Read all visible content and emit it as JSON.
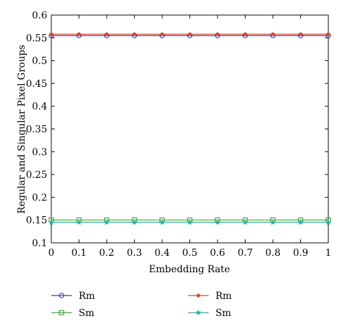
{
  "chart_data": {
    "type": "line",
    "title": "",
    "xlabel": "Embedding Rate",
    "ylabel": "Regular and Singular Pixel Groups",
    "xlim": [
      0,
      1
    ],
    "ylim": [
      0.1,
      0.6
    ],
    "x": [
      0,
      0.1,
      0.2,
      0.3,
      0.4,
      0.5,
      0.6,
      0.7,
      0.8,
      0.9,
      1
    ],
    "xticks": [
      "0",
      "0.1",
      "0.2",
      "0.3",
      "0.4",
      "0.5",
      "0.6",
      "0.7",
      "0.8",
      "0.9",
      "1"
    ],
    "yticks": [
      0.1,
      0.15,
      0.2,
      0.25,
      0.3,
      0.35,
      0.4,
      0.45,
      0.5,
      0.55,
      0.6
    ],
    "ytick_labels": [
      "0.1",
      "0.15",
      "0.2",
      "0.25",
      "0.3",
      "0.35",
      "0.4",
      "0.45",
      "0.5",
      "0.55",
      "0.6"
    ],
    "grid": false,
    "legend_placement": "below",
    "series": [
      {
        "name": "Rm",
        "color": "#3b3ba8",
        "marker": "circle",
        "values": [
          0.555,
          0.555,
          0.555,
          0.555,
          0.555,
          0.555,
          0.555,
          0.555,
          0.555,
          0.555,
          0.555
        ]
      },
      {
        "name": "Rm",
        "color": "#d9482b",
        "marker": "dot",
        "values": [
          0.558,
          0.558,
          0.558,
          0.558,
          0.558,
          0.558,
          0.558,
          0.558,
          0.558,
          0.558,
          0.558
        ]
      },
      {
        "name": "Sm",
        "color": "#3aa63a",
        "marker": "square",
        "values": [
          0.15,
          0.15,
          0.15,
          0.15,
          0.15,
          0.15,
          0.15,
          0.15,
          0.15,
          0.15,
          0.15
        ]
      },
      {
        "name": "Sm",
        "color": "#2fa8a8",
        "marker": "star",
        "values": [
          0.145,
          0.145,
          0.145,
          0.145,
          0.145,
          0.145,
          0.145,
          0.145,
          0.145,
          0.145,
          0.145
        ]
      }
    ]
  }
}
